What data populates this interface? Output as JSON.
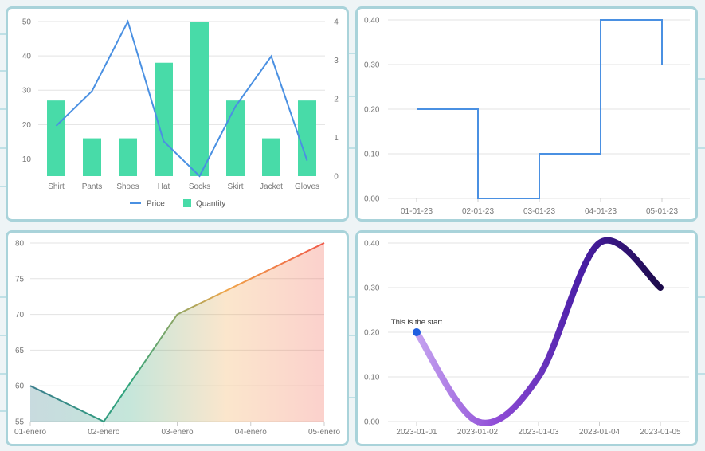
{
  "chart_data": [
    {
      "type": "bar",
      "categories": [
        "Shirt",
        "Pants",
        "Shoes",
        "Hat",
        "Socks",
        "Skirt",
        "Jacket",
        "Gloves"
      ],
      "series": [
        {
          "name": "Quantity",
          "type": "bar",
          "axis": "left",
          "color": "#48dba8",
          "values": [
            27,
            16,
            16,
            38,
            50,
            27,
            16,
            27
          ]
        },
        {
          "name": "Price",
          "type": "line",
          "axis": "right",
          "color": "#4a90e2",
          "values": [
            1.3,
            2.2,
            4,
            0.9,
            0,
            1.8,
            3.1,
            0.4
          ]
        }
      ],
      "ylim_left": [
        5,
        50
      ],
      "yticks_left": [
        10,
        20,
        30,
        40,
        50
      ],
      "ylim_right": [
        0,
        4
      ],
      "yticks_right": [
        0,
        1,
        2,
        3,
        4
      ],
      "legend": "bottom",
      "grid": true
    },
    {
      "type": "line",
      "step": true,
      "x": [
        "01-01-23",
        "02-01-23",
        "03-01-23",
        "04-01-23",
        "05-01-23"
      ],
      "series": [
        {
          "color": "#4a90e2",
          "values": [
            0.2,
            0,
            0.1,
            0.4,
            0.3
          ]
        }
      ],
      "ylim": [
        0,
        0.4
      ],
      "yticks": [
        "0.00",
        "0.10",
        "0.20",
        "0.30",
        "0.40"
      ],
      "grid": true
    },
    {
      "type": "area",
      "x": [
        "01-enero",
        "02-enero",
        "03-enero",
        "04-enero",
        "05-enero"
      ],
      "series": [
        {
          "values": [
            60,
            55,
            70,
            75,
            80
          ]
        }
      ],
      "ylim": [
        55,
        80
      ],
      "yticks": [
        55,
        60,
        65,
        70,
        75,
        80
      ],
      "gradient": [
        "#3a7d8c",
        "#2fa57c",
        "#f0a64a",
        "#f05a4a"
      ],
      "grid": true
    },
    {
      "type": "line",
      "smooth": true,
      "x": [
        "2023-01-01",
        "2023-01-02",
        "2023-01-03",
        "2023-01-04",
        "2023-01-05"
      ],
      "series": [
        {
          "values": [
            0.2,
            0,
            0.1,
            0.4,
            0.3
          ]
        }
      ],
      "ylim": [
        0,
        0.4
      ],
      "yticks": [
        "0.00",
        "0.10",
        "0.20",
        "0.30",
        "0.40"
      ],
      "gradient": [
        "#c5a3f0",
        "#8e4bd6",
        "#4b1fa8",
        "#1c0a4a"
      ],
      "start_marker_color": "#1f5fe0",
      "annotation": "This is the start",
      "grid": true
    }
  ]
}
